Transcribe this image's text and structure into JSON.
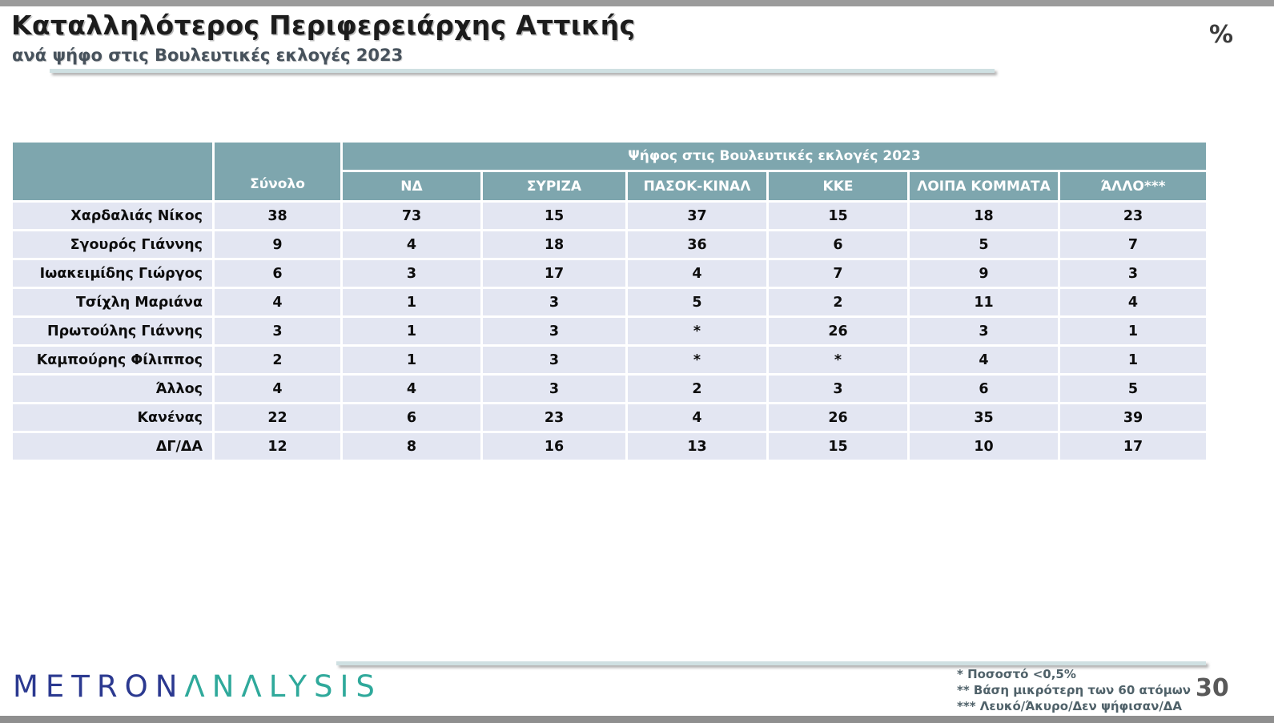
{
  "page": {
    "title": "Καταλληλότερος Περιφερειάρχης Αττικής",
    "subtitle": "ανά ψήφο στις Βουλευτικές εκλογές 2023",
    "unit_symbol": "%",
    "page_number": "30"
  },
  "logo": {
    "part1": "METRON",
    "part2": "ΛNΛLYSIS",
    "color1": "#2b3990",
    "color2": "#2fa99b"
  },
  "footnotes": [
    "*   Ποσοστό <0,5%",
    "** Βάση μικρότερη των 60 ατόμων",
    "*** Λευκό/Άκυρο/Δεν ψήφισαν/ΔΑ"
  ],
  "chart_data": {
    "type": "table",
    "group_header": "Ψήφος στις Βουλευτικές εκλογές 2023",
    "columns": [
      "Σύνολο",
      "ΝΔ",
      "ΣΥΡΙΖΑ",
      "ΠΑΣΟΚ-ΚΙΝΑΛ",
      "ΚΚΕ",
      "ΛΟΙΠΑ ΚΟΜΜΑΤΑ",
      "ΆΛΛΟ***"
    ],
    "rows": [
      {
        "label": "Χαρδαλιάς Νίκος",
        "values": [
          "38",
          "73",
          "15",
          "37",
          "15",
          "18",
          "23"
        ]
      },
      {
        "label": "Σγουρός Γιάννης",
        "values": [
          "9",
          "4",
          "18",
          "36",
          "6",
          "5",
          "7"
        ]
      },
      {
        "label": "Ιωακειμίδης Γιώργος",
        "values": [
          "6",
          "3",
          "17",
          "4",
          "7",
          "9",
          "3"
        ]
      },
      {
        "label": "Τσίχλη Μαριάνα",
        "values": [
          "4",
          "1",
          "3",
          "5",
          "2",
          "11",
          "4"
        ]
      },
      {
        "label": "Πρωτούλης Γιάννης",
        "values": [
          "3",
          "1",
          "3",
          "*",
          "26",
          "3",
          "1"
        ]
      },
      {
        "label": "Καμπούρης Φίλιππος",
        "values": [
          "2",
          "1",
          "3",
          "*",
          "*",
          "4",
          "1"
        ]
      },
      {
        "label": "Άλλος",
        "values": [
          "4",
          "4",
          "3",
          "2",
          "3",
          "6",
          "5"
        ]
      },
      {
        "label": "Κανένας",
        "values": [
          "22",
          "6",
          "23",
          "4",
          "26",
          "35",
          "39"
        ]
      },
      {
        "label": "ΔΓ/ΔΑ",
        "values": [
          "12",
          "8",
          "16",
          "13",
          "15",
          "10",
          "17"
        ]
      }
    ],
    "colors": {
      "header_bg": "#7ea6ae",
      "row_bg": "#e3e6f2",
      "header_text": "#ffffff",
      "rule": "#cfe0e2",
      "frame_bar": "#9b9b9b"
    }
  }
}
